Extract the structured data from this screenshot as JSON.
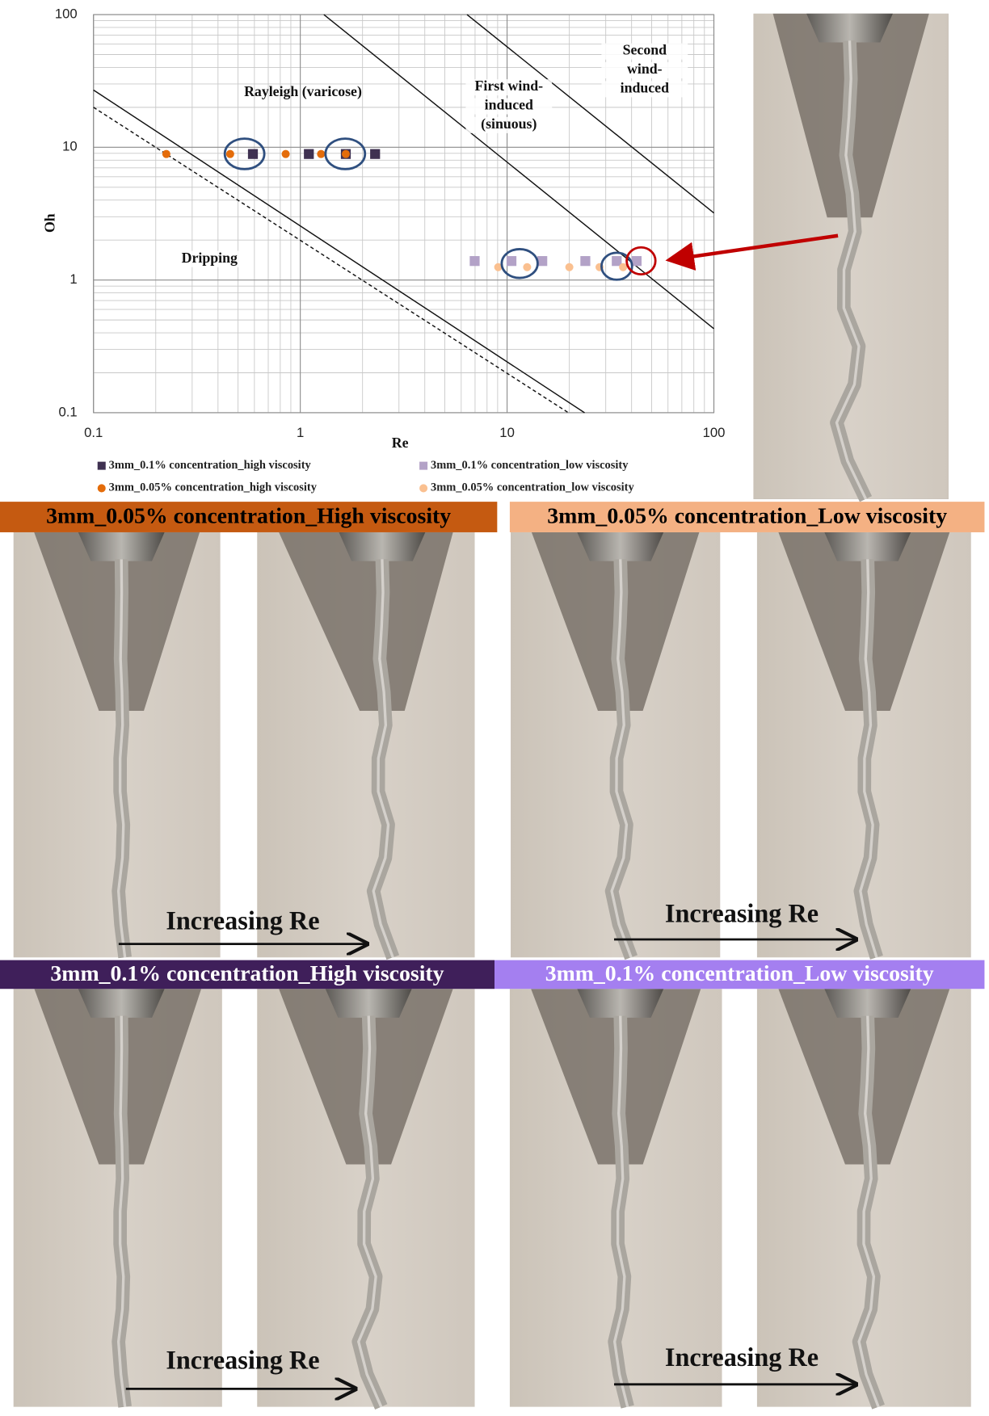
{
  "chart_data": {
    "type": "scatter",
    "x_label": "Re",
    "y_label": "Oh",
    "log_x": true,
    "log_y": true,
    "grid": true,
    "xlim": [
      0.1,
      100
    ],
    "ylim": [
      0.1,
      100
    ],
    "xticks": [
      0.1,
      1,
      10,
      100
    ],
    "yticks": [
      0.1,
      1,
      10,
      100
    ],
    "series": [
      {
        "name": "3mm_0.1% concentration_high viscosity",
        "color": "#3f3151",
        "marker": "square",
        "x": [
          0.59,
          1.1,
          1.66,
          2.3
        ],
        "values": [
          8.9,
          8.9,
          8.9,
          8.9
        ]
      },
      {
        "name": "3mm_0.1% concentration_low viscosity",
        "color": "#b3a2c7",
        "marker": "square",
        "x": [
          6.97,
          10.5,
          14.8,
          23.9,
          33.9,
          42.3
        ],
        "values": [
          1.39,
          1.39,
          1.39,
          1.39,
          1.39,
          1.39
        ]
      },
      {
        "name": "3mm_0.05% concentration_high viscosity",
        "color": "#e46c0a",
        "marker": "circle",
        "x": [
          0.225,
          0.458,
          0.85,
          1.26,
          1.66
        ],
        "values": [
          8.9,
          8.9,
          8.9,
          8.9,
          8.9
        ]
      },
      {
        "name": "3mm_0.05% concentration_low viscosity",
        "color": "#fac090",
        "marker": "circle",
        "x": [
          9.06,
          12.5,
          20,
          28,
          36.4
        ],
        "values": [
          1.25,
          1.25,
          1.25,
          1.25,
          1.25
        ]
      }
    ],
    "boundaries": [
      {
        "x": [
          0.1,
          23.7
        ],
        "y": [
          27,
          0.1
        ],
        "dashed": false
      },
      {
        "x": [
          0.1,
          19.8
        ],
        "y": [
          20,
          0.1
        ],
        "dashed": true
      },
      {
        "x": [
          1.3,
          100
        ],
        "y": [
          100,
          0.43
        ],
        "dashed": false
      },
      {
        "x": [
          6.4,
          100
        ],
        "y": [
          100,
          3.2
        ],
        "dashed": false
      }
    ],
    "annotations": [
      {
        "lines": [
          "Rayleigh (varicose)"
        ]
      },
      {
        "lines": [
          "First wind-",
          "induced",
          "(sinuous)"
        ]
      },
      {
        "lines": [
          "Second",
          "wind-",
          "induced"
        ]
      },
      {
        "lines": [
          "Dripping"
        ]
      }
    ]
  },
  "panels": [
    {
      "title": "3mm_0.05% concentration_High viscosity",
      "color": "#c55a11",
      "text_color": "#000000",
      "arrow_label": "Increasing Re"
    },
    {
      "title": "3mm_0.05% concentration_Low viscosity",
      "color": "#f4b183",
      "text_color": "#000000",
      "arrow_label": "Increasing Re"
    },
    {
      "title": "3mm_0.1% concentration_High viscosity",
      "color": "#3f1f5a",
      "text_color": "#ffffff",
      "arrow_label": "Increasing Re"
    },
    {
      "title": "3mm_0.1% concentration_Low viscosity",
      "color": "#a47ff0",
      "text_color": "#ffffff",
      "arrow_label": "Increasing Re"
    }
  ]
}
